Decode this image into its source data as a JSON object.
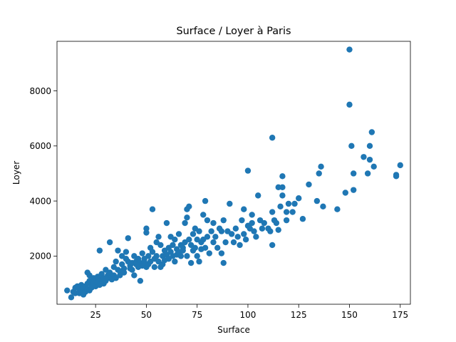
{
  "chart_data": {
    "type": "scatter",
    "title": "Surface / Loyer à Paris",
    "xlabel": "Surface",
    "ylabel": "Loyer",
    "xlim": [
      6,
      180
    ],
    "ylim": [
      250,
      9800
    ],
    "xticks": [
      25,
      50,
      75,
      100,
      125,
      150,
      175
    ],
    "yticks": [
      2000,
      4000,
      6000,
      8000
    ],
    "grid": false,
    "marker_color": "#1f77b4",
    "series": [
      {
        "points": [
          [
            11,
            750
          ],
          [
            13,
            500
          ],
          [
            14,
            700
          ],
          [
            15,
            850
          ],
          [
            15,
            650
          ],
          [
            16,
            900
          ],
          [
            17,
            650
          ],
          [
            17,
            800
          ],
          [
            18,
            950
          ],
          [
            18,
            700
          ],
          [
            19,
            600
          ],
          [
            19,
            850
          ],
          [
            20,
            900
          ],
          [
            20,
            700
          ],
          [
            21,
            1000
          ],
          [
            21,
            800
          ],
          [
            21,
            1400
          ],
          [
            22,
            750
          ],
          [
            22,
            1100
          ],
          [
            22,
            1300
          ],
          [
            23,
            950
          ],
          [
            23,
            850
          ],
          [
            24,
            1200
          ],
          [
            24,
            1000
          ],
          [
            25,
            1100
          ],
          [
            25,
            900
          ],
          [
            26,
            1250
          ],
          [
            26,
            1050
          ],
          [
            27,
            2200
          ],
          [
            27,
            950
          ],
          [
            28,
            1150
          ],
          [
            28,
            1350
          ],
          [
            29,
            1000
          ],
          [
            29,
            1200
          ],
          [
            30,
            1500
          ],
          [
            30,
            1100
          ],
          [
            31,
            1300
          ],
          [
            31,
            1200
          ],
          [
            32,
            2500
          ],
          [
            32,
            1400
          ],
          [
            33,
            1250
          ],
          [
            33,
            1150
          ],
          [
            34,
            1600
          ],
          [
            34,
            1300
          ],
          [
            35,
            1800
          ],
          [
            35,
            1200
          ],
          [
            36,
            2200
          ],
          [
            36,
            1500
          ],
          [
            37,
            1450
          ],
          [
            37,
            1300
          ],
          [
            38,
            2000
          ],
          [
            38,
            1700
          ],
          [
            39,
            1550
          ],
          [
            39,
            1400
          ],
          [
            40,
            2150
          ],
          [
            40,
            1900
          ],
          [
            41,
            2650
          ],
          [
            41,
            1800
          ],
          [
            42,
            1650
          ],
          [
            42,
            1550
          ],
          [
            43,
            1750
          ],
          [
            43,
            1500
          ],
          [
            44,
            2000
          ],
          [
            44,
            1300
          ],
          [
            45,
            1700
          ],
          [
            45,
            1800
          ],
          [
            46,
            1600
          ],
          [
            46,
            1900
          ],
          [
            47,
            1750
          ],
          [
            47,
            1100
          ],
          [
            48,
            2100
          ],
          [
            48,
            1650
          ],
          [
            49,
            1900
          ],
          [
            49,
            1800
          ],
          [
            50,
            2850
          ],
          [
            50,
            3000
          ],
          [
            50,
            1600
          ],
          [
            51,
            2000
          ],
          [
            51,
            1700
          ],
          [
            52,
            1800
          ],
          [
            52,
            2300
          ],
          [
            53,
            3700
          ],
          [
            53,
            2150
          ],
          [
            54,
            1900
          ],
          [
            54,
            1600
          ],
          [
            55,
            2500
          ],
          [
            55,
            2000
          ],
          [
            56,
            2700
          ],
          [
            56,
            1800
          ],
          [
            57,
            1600
          ],
          [
            57,
            2400
          ],
          [
            58,
            2000
          ],
          [
            58,
            1700
          ],
          [
            59,
            2200
          ],
          [
            59,
            1850
          ],
          [
            60,
            3200
          ],
          [
            60,
            2050
          ],
          [
            61,
            2300
          ],
          [
            61,
            1900
          ],
          [
            62,
            2700
          ],
          [
            62,
            2150
          ],
          [
            63,
            2000
          ],
          [
            63,
            2400
          ],
          [
            64,
            2600
          ],
          [
            64,
            1800
          ],
          [
            65,
            2250
          ],
          [
            65,
            2050
          ],
          [
            66,
            2800
          ],
          [
            66,
            2150
          ],
          [
            67,
            2400
          ],
          [
            67,
            2000
          ],
          [
            68,
            2300
          ],
          [
            68,
            2200
          ],
          [
            69,
            3200
          ],
          [
            69,
            2500
          ],
          [
            70,
            3700
          ],
          [
            70,
            3400
          ],
          [
            70,
            2000
          ],
          [
            71,
            3800
          ],
          [
            71,
            2600
          ],
          [
            72,
            2400
          ],
          [
            72,
            1750
          ],
          [
            73,
            2800
          ],
          [
            73,
            2200
          ],
          [
            74,
            3000
          ],
          [
            74,
            2300
          ],
          [
            75,
            2600
          ],
          [
            75,
            2000
          ],
          [
            76,
            2900
          ],
          [
            76,
            1800
          ],
          [
            77,
            2500
          ],
          [
            77,
            2250
          ],
          [
            78,
            3500
          ],
          [
            78,
            2600
          ],
          [
            79,
            4000
          ],
          [
            79,
            2300
          ],
          [
            80,
            3300
          ],
          [
            80,
            2700
          ],
          [
            81,
            2100
          ],
          [
            82,
            2900
          ],
          [
            83,
            3200
          ],
          [
            83,
            2500
          ],
          [
            84,
            2700
          ],
          [
            85,
            2300
          ],
          [
            86,
            3000
          ],
          [
            87,
            2900
          ],
          [
            87,
            2100
          ],
          [
            88,
            3300
          ],
          [
            88,
            1750
          ],
          [
            89,
            2500
          ],
          [
            90,
            2900
          ],
          [
            91,
            3900
          ],
          [
            92,
            2800
          ],
          [
            93,
            2500
          ],
          [
            94,
            3000
          ],
          [
            95,
            2700
          ],
          [
            96,
            2400
          ],
          [
            97,
            3300
          ],
          [
            98,
            2800
          ],
          [
            98,
            3700
          ],
          [
            99,
            2600
          ],
          [
            100,
            5100
          ],
          [
            100,
            3100
          ],
          [
            101,
            3000
          ],
          [
            102,
            3500
          ],
          [
            102,
            3200
          ],
          [
            103,
            2900
          ],
          [
            104,
            2700
          ],
          [
            105,
            4200
          ],
          [
            106,
            3300
          ],
          [
            107,
            3000
          ],
          [
            108,
            3200
          ],
          [
            110,
            3000
          ],
          [
            111,
            2900
          ],
          [
            112,
            6300
          ],
          [
            112,
            3600
          ],
          [
            112,
            2400
          ],
          [
            113,
            3300
          ],
          [
            114,
            3200
          ],
          [
            115,
            4500
          ],
          [
            115,
            2950
          ],
          [
            116,
            3800
          ],
          [
            117,
            4900
          ],
          [
            117,
            4500
          ],
          [
            117,
            4200
          ],
          [
            119,
            3600
          ],
          [
            119,
            3300
          ],
          [
            120,
            3900
          ],
          [
            122,
            3600
          ],
          [
            123,
            3900
          ],
          [
            125,
            4100
          ],
          [
            127,
            3350
          ],
          [
            130,
            4600
          ],
          [
            134,
            4000
          ],
          [
            135,
            5000
          ],
          [
            136,
            5250
          ],
          [
            137,
            3800
          ],
          [
            144,
            3700
          ],
          [
            148,
            4300
          ],
          [
            150,
            9500
          ],
          [
            150,
            7500
          ],
          [
            151,
            6000
          ],
          [
            152,
            5000
          ],
          [
            152,
            4400
          ],
          [
            157,
            5600
          ],
          [
            159,
            5000
          ],
          [
            160,
            6000
          ],
          [
            160,
            5500
          ],
          [
            161,
            6500
          ],
          [
            162,
            5250
          ],
          [
            173,
            4900
          ],
          [
            173,
            4950
          ],
          [
            175,
            5300
          ]
        ]
      }
    ]
  }
}
